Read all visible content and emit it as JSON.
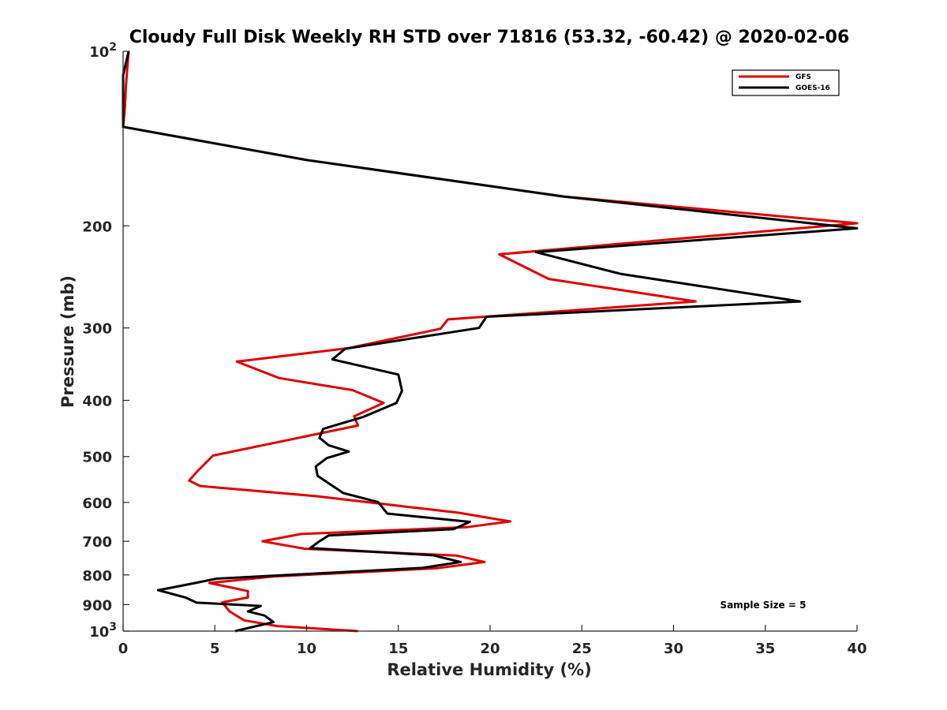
{
  "chart_data": {
    "type": "line",
    "title": "Cloudy Full Disk Weekly RH STD over 71816 (53.32, -60.42) @ 2020-02-06",
    "xlabel": "Relative Humidity (%)",
    "ylabel": "Pressure (mb)",
    "xlim": [
      0,
      40
    ],
    "ylim": [
      100,
      1000
    ],
    "y_scale": "log",
    "y_reversed": true,
    "grid": false,
    "legend_position": "top-right",
    "x_ticks": [
      "0",
      "5",
      "10",
      "15",
      "20",
      "25",
      "30",
      "35",
      "40"
    ],
    "y_ticks": [
      {
        "value": 100,
        "base": "10",
        "exp": "2"
      },
      {
        "value": 200,
        "label": "200"
      },
      {
        "value": 300,
        "label": "300"
      },
      {
        "value": 400,
        "label": "400"
      },
      {
        "value": 500,
        "label": "500"
      },
      {
        "value": 600,
        "label": "600"
      },
      {
        "value": 700,
        "label": "700"
      },
      {
        "value": 800,
        "label": "800"
      },
      {
        "value": 900,
        "label": "900"
      },
      {
        "value": 1000,
        "base": "10",
        "exp": "3"
      }
    ],
    "annotation": "Sample Size = 5",
    "series": [
      {
        "name": "GFS",
        "color": "#e00000",
        "points": [
          [
            0.3,
            100
          ],
          [
            0.15,
            115
          ],
          [
            0.1,
            125
          ],
          [
            0,
            135
          ],
          [
            10,
            154
          ],
          [
            24,
            178
          ],
          [
            40,
            198
          ],
          [
            20.5,
            224
          ],
          [
            23.2,
            247
          ],
          [
            31.2,
            270
          ],
          [
            17.7,
            290
          ],
          [
            17.3,
            301
          ],
          [
            12.3,
            325
          ],
          [
            6.2,
            343
          ],
          [
            8.5,
            366
          ],
          [
            12.5,
            384
          ],
          [
            14.2,
            404
          ],
          [
            12.6,
            426
          ],
          [
            12.8,
            442
          ],
          [
            4.9,
            498
          ],
          [
            4.0,
            532
          ],
          [
            3.6,
            550
          ],
          [
            4.2,
            562
          ],
          [
            10.5,
            585
          ],
          [
            18.3,
            625
          ],
          [
            21.1,
            647
          ],
          [
            18.7,
            662
          ],
          [
            9.7,
            680
          ],
          [
            7.6,
            700
          ],
          [
            9.9,
            721
          ],
          [
            18.2,
            741
          ],
          [
            19.7,
            760
          ],
          [
            17.1,
            779
          ],
          [
            8.2,
            805
          ],
          [
            4.7,
            826
          ],
          [
            6.8,
            853
          ],
          [
            6.8,
            875
          ],
          [
            5.4,
            892
          ],
          [
            5.8,
            925
          ],
          [
            6.6,
            958
          ],
          [
            8.4,
            980
          ],
          [
            12.8,
            1000
          ]
        ]
      },
      {
        "name": "GOES-16",
        "color": "#000000",
        "points": [
          [
            0.3,
            100
          ],
          [
            0,
            110
          ],
          [
            0,
            135
          ],
          [
            10,
            154
          ],
          [
            24,
            178
          ],
          [
            40,
            202
          ],
          [
            22.5,
            222
          ],
          [
            27.1,
            242
          ],
          [
            36.9,
            270
          ],
          [
            19.8,
            287
          ],
          [
            19.4,
            300
          ],
          [
            12.1,
            326
          ],
          [
            11.4,
            340
          ],
          [
            15.0,
            361
          ],
          [
            15.2,
            385
          ],
          [
            14.9,
            404
          ],
          [
            13.1,
            427
          ],
          [
            10.9,
            448
          ],
          [
            10.7,
            464
          ],
          [
            11.2,
            478
          ],
          [
            12.3,
            490
          ],
          [
            11.1,
            503
          ],
          [
            10.5,
            520
          ],
          [
            10.6,
            540
          ],
          [
            12.0,
            578
          ],
          [
            13.9,
            599
          ],
          [
            14.4,
            627
          ],
          [
            18.9,
            648
          ],
          [
            18.0,
            667
          ],
          [
            11.2,
            684
          ],
          [
            10.7,
            700
          ],
          [
            10.2,
            719
          ],
          [
            16.9,
            740
          ],
          [
            18.4,
            760
          ],
          [
            16.3,
            778
          ],
          [
            5.1,
            812
          ],
          [
            3.2,
            835
          ],
          [
            1.9,
            850
          ],
          [
            3.4,
            875
          ],
          [
            4.0,
            893
          ],
          [
            7.5,
            905
          ],
          [
            6.8,
            925
          ],
          [
            7.7,
            940
          ],
          [
            8.2,
            965
          ],
          [
            6.1,
            1000
          ]
        ]
      }
    ]
  }
}
